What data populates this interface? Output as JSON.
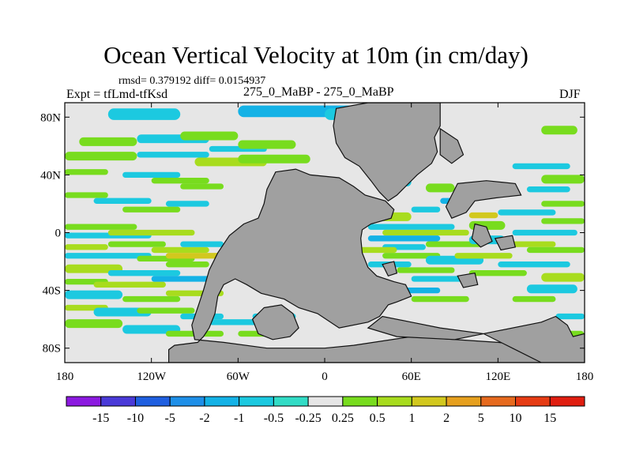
{
  "chart_data": {
    "type": "heatmap",
    "title": "Ocean Vertical Velocity at 10m (in cm/day)",
    "stats_text": "rmsd= 0.379192 diff= 0.0154937",
    "left_label": "Expt = tfLmd-tfKsd",
    "center_label": "275_0_MaBP - 275_0_MaBP",
    "right_label": "DJF",
    "x_axis": {
      "min": -180,
      "max": 180,
      "ticks": [
        -180,
        -120,
        -60,
        0,
        60,
        120,
        180
      ],
      "tick_labels": [
        "180",
        "120W",
        "60W",
        "0",
        "60E",
        "120E",
        "180"
      ]
    },
    "y_axis": {
      "min": -90,
      "max": 90,
      "ticks": [
        80,
        40,
        0,
        -40,
        -80
      ],
      "tick_labels": [
        "80N",
        "40N",
        "0",
        "40S",
        "80S"
      ]
    },
    "colorbar": {
      "levels": [
        "-15",
        "-10",
        "-5",
        "-2",
        "-1",
        "-0.5",
        "-0.25",
        "0.25",
        "0.5",
        "1",
        "2",
        "5",
        "10",
        "15"
      ],
      "colors": [
        "#8c1ae0",
        "#4a3ad8",
        "#1f5fe0",
        "#1e8fe8",
        "#14b2e6",
        "#1cc9e0",
        "#32dcc6",
        "#e6e6e6",
        "#78dc1e",
        "#a8dc1e",
        "#d2c81e",
        "#e6a01e",
        "#e66a1e",
        "#e63c14",
        "#e01e10"
      ]
    },
    "land_color": "#a0a0a0",
    "background_color": "#e6e6e6"
  }
}
